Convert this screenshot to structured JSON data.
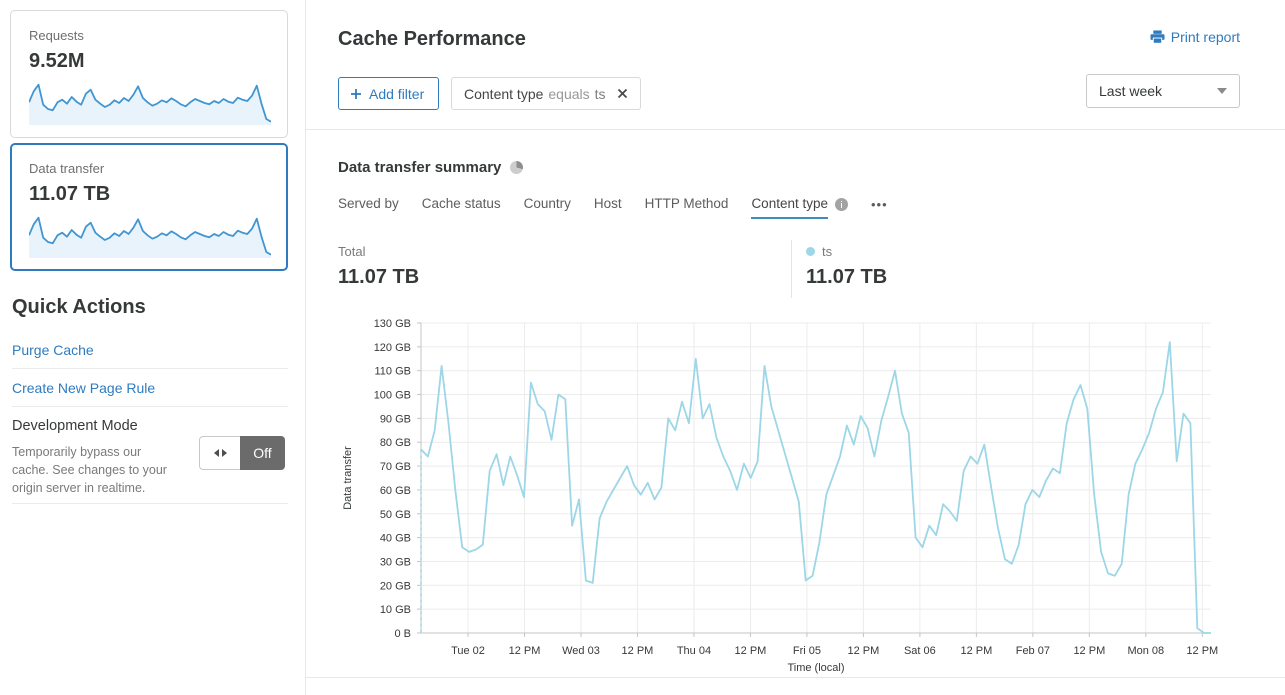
{
  "sidebar": {
    "cards": [
      {
        "label": "Requests",
        "value": "9.52M",
        "selected": false
      },
      {
        "label": "Data transfer",
        "value": "11.07 TB",
        "selected": true
      }
    ],
    "spark": [
      62,
      95,
      115,
      55,
      42,
      38,
      62,
      70,
      58,
      78,
      64,
      55,
      88,
      100,
      70,
      58,
      48,
      55,
      68,
      60,
      75,
      66,
      85,
      110,
      75,
      62,
      52,
      58,
      68,
      62,
      74,
      66,
      56,
      50,
      62,
      72,
      66,
      60,
      56,
      66,
      60,
      72,
      64,
      60,
      76,
      70,
      66,
      82,
      112,
      58,
      12,
      4
    ],
    "quick_actions": {
      "title": "Quick Actions",
      "links": [
        "Purge Cache",
        "Create New Page Rule"
      ],
      "dev_mode": {
        "title": "Development Mode",
        "description": "Temporarily bypass our cache. See changes to your origin server in realtime.",
        "toggle_label": "Off"
      }
    }
  },
  "header": {
    "title": "Cache Performance",
    "print_label": "Print report"
  },
  "filters": {
    "add_label": "Add filter",
    "chip": {
      "field": "Content type",
      "operator": "equals",
      "value": "ts"
    },
    "range_label": "Last week"
  },
  "summary": {
    "title": "Data transfer summary",
    "tabs": [
      {
        "label": "Served by",
        "active": false
      },
      {
        "label": "Cache status",
        "active": false
      },
      {
        "label": "Country",
        "active": false
      },
      {
        "label": "Host",
        "active": false
      },
      {
        "label": "HTTP Method",
        "active": false
      },
      {
        "label": "Content type",
        "active": true
      }
    ],
    "more_label": "•••",
    "total_label": "Total",
    "total_value": "11.07 TB",
    "legend": {
      "name": "ts",
      "value": "11.07 TB"
    }
  },
  "chart_data": {
    "type": "line",
    "title": "Data transfer summary — Content type: ts",
    "xlabel": "Time (local)",
    "ylabel": "Data transfer",
    "ylim": [
      0,
      130
    ],
    "unit": "GB",
    "grid": true,
    "start_dashed_drop_line": true,
    "y_ticks": [
      {
        "v": 0,
        "label": "0 B"
      },
      {
        "v": 10,
        "label": "10 GB"
      },
      {
        "v": 20,
        "label": "20 GB"
      },
      {
        "v": 30,
        "label": "30 GB"
      },
      {
        "v": 40,
        "label": "40 GB"
      },
      {
        "v": 50,
        "label": "50 GB"
      },
      {
        "v": 60,
        "label": "60 GB"
      },
      {
        "v": 70,
        "label": "70 GB"
      },
      {
        "v": 80,
        "label": "80 GB"
      },
      {
        "v": 90,
        "label": "90 GB"
      },
      {
        "v": 100,
        "label": "100 GB"
      },
      {
        "v": 110,
        "label": "110 GB"
      },
      {
        "v": 120,
        "label": "120 GB"
      },
      {
        "v": 130,
        "label": "130 GB"
      }
    ],
    "x_ticks": [
      {
        "pos": 0.0595,
        "label": "Tue 02"
      },
      {
        "pos": 0.131,
        "label": "12 PM"
      },
      {
        "pos": 0.2025,
        "label": "Wed 03"
      },
      {
        "pos": 0.274,
        "label": "12 PM"
      },
      {
        "pos": 0.3455,
        "label": "Thu 04"
      },
      {
        "pos": 0.417,
        "label": "12 PM"
      },
      {
        "pos": 0.4885,
        "label": "Fri 05"
      },
      {
        "pos": 0.56,
        "label": "12 PM"
      },
      {
        "pos": 0.6315,
        "label": "Sat 06"
      },
      {
        "pos": 0.703,
        "label": "12 PM"
      },
      {
        "pos": 0.7745,
        "label": "Feb 07"
      },
      {
        "pos": 0.846,
        "label": "12 PM"
      },
      {
        "pos": 0.9175,
        "label": "Mon 08"
      },
      {
        "pos": 0.989,
        "label": "12 PM"
      }
    ],
    "series": [
      {
        "name": "ts",
        "color": "#9cd6e7",
        "values": [
          77,
          74,
          85,
          112,
          88,
          60,
          36,
          34,
          35,
          37,
          68,
          75,
          62,
          74,
          66,
          57,
          105,
          96,
          93,
          81,
          100,
          98,
          45,
          56,
          22,
          21,
          48,
          55,
          60,
          65,
          70,
          62,
          58,
          63,
          56,
          61,
          90,
          85,
          97,
          88,
          115,
          90,
          96,
          82,
          74,
          68,
          60,
          71,
          65,
          72,
          112,
          95,
          85,
          75,
          65,
          55,
          22,
          24,
          38,
          58,
          66,
          74,
          87,
          79,
          91,
          86,
          74,
          89,
          99,
          110,
          92,
          84,
          40,
          36,
          45,
          41,
          54,
          51,
          47,
          68,
          74,
          71,
          79,
          61,
          44,
          31,
          29,
          37,
          54,
          60,
          57,
          64,
          69,
          67,
          88,
          98,
          104,
          94,
          58,
          34,
          25,
          24,
          29,
          58,
          71,
          77,
          84,
          94,
          101,
          122,
          72,
          92,
          88,
          2,
          0,
          0
        ]
      }
    ]
  },
  "colors": {
    "accent_blue": "#2f7bbf",
    "chart_line": "#9cd6e7",
    "sparkline": "#4095d2",
    "sparkline_fill": "#e9f3fb",
    "toggle_off_bg": "#6b6b6b",
    "divider": "#e8e8e8"
  }
}
